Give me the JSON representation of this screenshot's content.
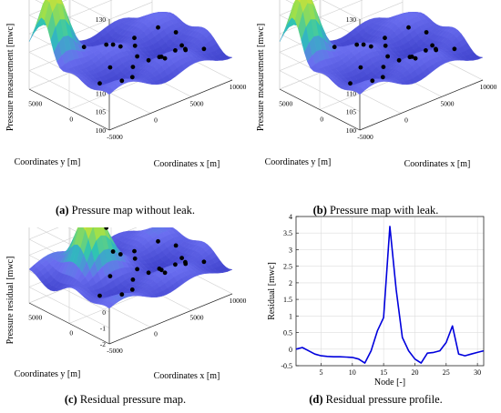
{
  "chart_data": [
    {
      "type": "surface3d",
      "panel": "a",
      "caption_letter": "(a)",
      "caption_text": "Pressure map without leak.",
      "zlabel": "Pressure measurement [mwc]",
      "xlabel": "Coordinates x [m]",
      "ylabel": "Coordinates y [m]",
      "z_ticks": [
        "100",
        "105",
        "110",
        "115",
        "120",
        "125",
        "130"
      ],
      "x_ticks": [
        "-5000",
        "0",
        "5000",
        "10000"
      ],
      "y_ticks": [
        "0",
        "5000"
      ],
      "zlim": [
        100,
        132
      ],
      "peak_value": 131,
      "colormap": [
        "#3b3ec9",
        "#6a6ef0",
        "#29c2b8",
        "#9fe04a",
        "#f0e130"
      ]
    },
    {
      "type": "surface3d",
      "panel": "b",
      "caption_letter": "(b)",
      "caption_text": "Pressure map with leak.",
      "zlabel": "Pressure measurement [mwc]",
      "xlabel": "Coordinates x [m]",
      "ylabel": "Coordinates y [m]",
      "z_ticks": [
        "100",
        "105",
        "110",
        "115",
        "120",
        "125",
        "130"
      ],
      "x_ticks": [
        "-5000",
        "0",
        "5000",
        "10000"
      ],
      "y_ticks": [
        "0",
        "5000"
      ],
      "zlim": [
        100,
        132
      ],
      "peak_value": 131,
      "colormap": [
        "#3b3ec9",
        "#6a6ef0",
        "#29c2b8",
        "#9fe04a",
        "#f0e130"
      ]
    },
    {
      "type": "surface3d",
      "panel": "c",
      "caption_letter": "(c)",
      "caption_text": "Residual pressure map.",
      "zlabel": "Pressure residual [mwc]",
      "xlabel": "Coordinates x [m]",
      "ylabel": "Coordinates y [m]",
      "z_ticks": [
        "-2",
        "-1",
        "0",
        "1",
        "2",
        "3",
        "4"
      ],
      "x_ticks": [
        "-5000",
        "0",
        "5000",
        "10000"
      ],
      "y_ticks": [
        "0",
        "5000"
      ],
      "zlim": [
        -2,
        4
      ],
      "peak_value": 3.7,
      "colormap": [
        "#3b3ec9",
        "#6a6ef0",
        "#29c2b8",
        "#9fe04a",
        "#f0e130"
      ]
    },
    {
      "type": "line",
      "panel": "d",
      "caption_letter": "(d)",
      "caption_text": "Residual pressure profile.",
      "xlabel": "Node [-]",
      "ylabel": "Residual [mwc]",
      "xlim": [
        1,
        31
      ],
      "ylim": [
        -0.5,
        4
      ],
      "x_ticks": [
        5,
        10,
        15,
        20,
        25,
        30
      ],
      "y_ticks": [
        -0.5,
        0,
        0.5,
        1,
        1.5,
        2,
        2.5,
        3,
        3.5,
        4
      ],
      "y_tick_labels": [
        "-0.5",
        "0",
        "0.5",
        "1",
        "1.5",
        "2",
        "2.5",
        "3",
        "3.5",
        "4"
      ],
      "grid": true,
      "series": [
        {
          "color": "#0000dd",
          "x": [
            1,
            2,
            3,
            4,
            5,
            6,
            7,
            8,
            9,
            10,
            11,
            12,
            13,
            14,
            15,
            16,
            17,
            18,
            19,
            20,
            21,
            22,
            23,
            24,
            25,
            26,
            27,
            28,
            29,
            30,
            31
          ],
          "y": [
            0.0,
            0.05,
            -0.05,
            -0.15,
            -0.2,
            -0.22,
            -0.23,
            -0.23,
            -0.24,
            -0.25,
            -0.3,
            -0.42,
            -0.05,
            0.55,
            0.95,
            3.7,
            1.8,
            0.35,
            -0.05,
            -0.3,
            -0.42,
            -0.12,
            -0.1,
            -0.05,
            0.2,
            0.7,
            -0.15,
            -0.2,
            -0.15,
            -0.1,
            -0.05
          ]
        }
      ]
    }
  ]
}
